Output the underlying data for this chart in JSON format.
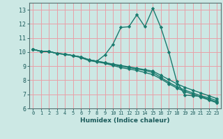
{
  "xlabel": "Humidex (Indice chaleur)",
  "bg_color": "#cce8e4",
  "grid_color": "#e8a0a8",
  "line_color": "#1a7a6e",
  "xlim": [
    -0.5,
    23.5
  ],
  "ylim": [
    6.0,
    13.5
  ],
  "xticks": [
    0,
    1,
    2,
    3,
    4,
    5,
    6,
    7,
    8,
    9,
    10,
    11,
    12,
    13,
    14,
    15,
    16,
    17,
    18,
    19,
    20,
    21,
    22,
    23
  ],
  "yticks": [
    6,
    7,
    8,
    9,
    10,
    11,
    12,
    13
  ],
  "line1_x": [
    0,
    1,
    2,
    3,
    4,
    5,
    6,
    7,
    8,
    9,
    10,
    11,
    12,
    13,
    14,
    15,
    16,
    17,
    18,
    19,
    20,
    21,
    22,
    23
  ],
  "line1_y": [
    10.2,
    10.05,
    10.05,
    9.9,
    9.85,
    9.75,
    9.65,
    9.45,
    9.35,
    9.8,
    10.55,
    11.75,
    11.8,
    12.65,
    11.8,
    13.1,
    11.75,
    10.0,
    7.9,
    6.95,
    6.9,
    6.85,
    6.65,
    6.45
  ],
  "line2_x": [
    0,
    1,
    2,
    3,
    4,
    5,
    6,
    7,
    8,
    9,
    10,
    11,
    12,
    13,
    14,
    15,
    16,
    17,
    18,
    19,
    20,
    21,
    22,
    23
  ],
  "line2_y": [
    10.2,
    10.05,
    10.05,
    9.9,
    9.85,
    9.75,
    9.65,
    9.45,
    9.35,
    9.25,
    9.15,
    9.05,
    8.95,
    8.85,
    8.75,
    8.65,
    8.35,
    8.05,
    7.75,
    7.5,
    7.3,
    7.1,
    6.9,
    6.7
  ],
  "line3_x": [
    0,
    1,
    2,
    3,
    4,
    5,
    6,
    7,
    8,
    9,
    10,
    11,
    12,
    13,
    14,
    15,
    16,
    17,
    18,
    19,
    20,
    21,
    22,
    23
  ],
  "line3_y": [
    10.2,
    10.05,
    10.05,
    9.9,
    9.85,
    9.75,
    9.65,
    9.45,
    9.35,
    9.25,
    9.1,
    9.0,
    8.9,
    8.8,
    8.7,
    8.55,
    8.2,
    7.85,
    7.55,
    7.3,
    7.1,
    6.9,
    6.75,
    6.55
  ],
  "line4_x": [
    0,
    1,
    2,
    3,
    4,
    5,
    6,
    7,
    8,
    9,
    10,
    11,
    12,
    13,
    14,
    15,
    16,
    17,
    18,
    19,
    20,
    21,
    22,
    23
  ],
  "line4_y": [
    10.2,
    10.05,
    10.05,
    9.9,
    9.85,
    9.75,
    9.6,
    9.4,
    9.3,
    9.2,
    9.05,
    8.9,
    8.8,
    8.7,
    8.55,
    8.4,
    8.1,
    7.75,
    7.45,
    7.2,
    7.0,
    6.8,
    6.6,
    6.4
  ],
  "marker": "D",
  "markersize": 2.2,
  "linewidth": 1.0,
  "xlabel_fontsize": 6.5,
  "tick_fontsize_x": 5.0,
  "tick_fontsize_y": 6.0
}
